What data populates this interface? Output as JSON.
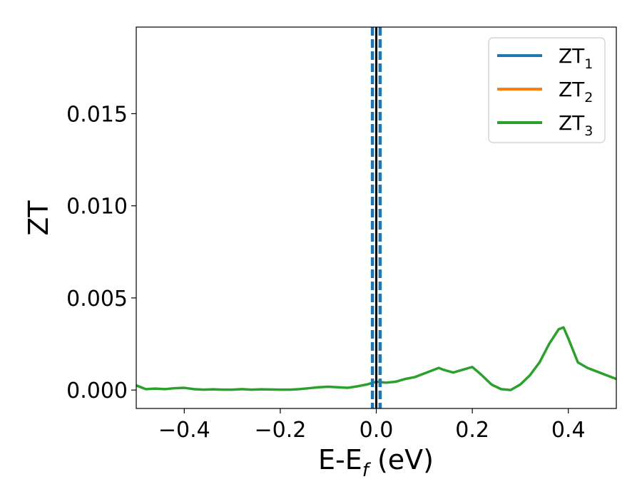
{
  "chart_data": {
    "type": "line",
    "title": "",
    "xlabel": {
      "main": "E-E",
      "sub": "f",
      "unit": " (eV)"
    },
    "ylabel": "ZT",
    "xlim": [
      -0.5,
      0.5
    ],
    "ylim": [
      -0.001,
      0.0197
    ],
    "xticks": [
      -0.4,
      -0.2,
      0.0,
      0.2,
      0.4
    ],
    "xtick_labels": [
      "−0.4",
      "−0.2",
      "0.0",
      "0.2",
      "0.4"
    ],
    "yticks": [
      0.0,
      0.005,
      0.01,
      0.015
    ],
    "ytick_labels": [
      "0.000",
      "0.005",
      "0.010",
      "0.015"
    ],
    "grid": false,
    "legend_position": "top-right",
    "vertical_lines": [
      {
        "x": 0.0,
        "color": "#000000",
        "style": "solid"
      },
      {
        "x": -0.008,
        "color": "#1f77b4",
        "style": "dashed"
      },
      {
        "x": 0.008,
        "color": "#1f77b4",
        "style": "dashed"
      }
    ],
    "series": [
      {
        "name": "ZT",
        "sub": "1",
        "color": "#1f77b4",
        "x": [],
        "y": []
      },
      {
        "name": "ZT",
        "sub": "2",
        "color": "#ff7f0e",
        "x": [],
        "y": []
      },
      {
        "name": "ZT",
        "sub": "3",
        "color": "#2ca02c",
        "x": [
          -0.5,
          -0.48,
          -0.46,
          -0.44,
          -0.42,
          -0.4,
          -0.38,
          -0.36,
          -0.34,
          -0.32,
          -0.3,
          -0.28,
          -0.26,
          -0.24,
          -0.22,
          -0.2,
          -0.18,
          -0.16,
          -0.14,
          -0.12,
          -0.1,
          -0.08,
          -0.06,
          -0.04,
          -0.02,
          0.0,
          0.02,
          0.04,
          0.06,
          0.08,
          0.1,
          0.12,
          0.13,
          0.14,
          0.16,
          0.18,
          0.2,
          0.22,
          0.24,
          0.26,
          0.28,
          0.3,
          0.32,
          0.34,
          0.36,
          0.38,
          0.39,
          0.4,
          0.42,
          0.44,
          0.46,
          0.48,
          0.5
        ],
        "y": [
          0.00025,
          5e-05,
          8e-05,
          5e-05,
          0.0001,
          0.00012,
          5e-05,
          2e-05,
          4e-05,
          2e-05,
          2e-05,
          5e-05,
          2e-05,
          4e-05,
          3e-05,
          2e-05,
          2e-05,
          5e-05,
          0.0001,
          0.00015,
          0.00018,
          0.00015,
          0.00012,
          0.0002,
          0.0003,
          0.00045,
          0.0004,
          0.00045,
          0.0006,
          0.0007,
          0.0009,
          0.0011,
          0.0012,
          0.0011,
          0.00095,
          0.0011,
          0.00125,
          0.0008,
          0.0003,
          5e-05,
          0.0,
          0.0003,
          0.0008,
          0.0015,
          0.0025,
          0.0033,
          0.0034,
          0.0028,
          0.0015,
          0.0012,
          0.001,
          0.0008,
          0.0006
        ]
      }
    ]
  }
}
